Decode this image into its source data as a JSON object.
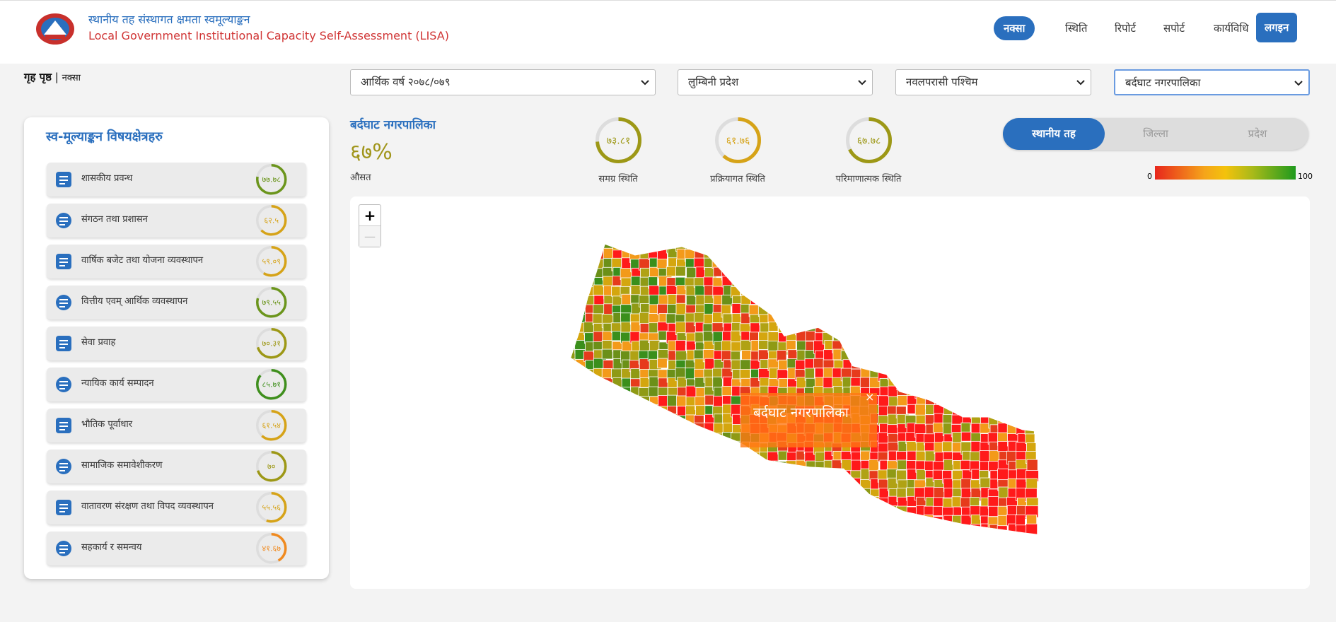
{
  "header": {
    "title_np": "स्थानीय तह संस्थागत क्षमता स्वमूल्याङ्कन",
    "title_en": "Local Government Institutional Capacity Self-Assessment (LISA)"
  },
  "nav": [
    "नक्सा",
    "स्थिति",
    "रिपोर्ट",
    "सपोर्ट",
    "कार्यविधि"
  ],
  "login": "लगइन",
  "breadcrumb": {
    "home": "गृह पृष्ठ",
    "current": "नक्सा"
  },
  "filters": [
    "आर्थिक वर्ष २०७८/०७९",
    "लुम्बिनी प्रदेश",
    "नवलपरासी पश्चिम",
    "बर्दघाट नगरपालिका"
  ],
  "sidebar": {
    "title": "स्व-मूल्याङ्कन विषयक्षेत्रहरु",
    "items": [
      {
        "label": "शासकीय प्रवन्ध",
        "score": "७७.७८"
      },
      {
        "label": "संगठन तथा प्रशासन",
        "score": "६२.५"
      },
      {
        "label": "वार्षिक बजेट तथा योजना व्यवस्थापन",
        "score": "५९.०९"
      },
      {
        "label": "वित्तीय एवम् आर्थिक व्यवस्थापन",
        "score": "७९.५५"
      },
      {
        "label": "सेवा प्रवाह",
        "score": "७०.३१"
      },
      {
        "label": "न्यायिक कार्य सम्पादन",
        "score": "८५.७१"
      },
      {
        "label": "भौतिक पूर्वाधार",
        "score": "६१.५४"
      },
      {
        "label": "सामाजिक समावेशीकरण",
        "score": "७०"
      },
      {
        "label": "वातावरण संरक्षण तथा विपद व्यवस्थापन",
        "score": "५५.५६"
      },
      {
        "label": "सहकार्य र समन्वय",
        "score": "४१.६७"
      }
    ]
  },
  "summary": {
    "name": "बर्दघाट नगरपालिका",
    "average": "६७%",
    "average_label": "औसत",
    "indicators": [
      {
        "label": "समग्र स्थिति",
        "score": "७३.८१"
      },
      {
        "label": "प्रक्रियागत स्थिति",
        "score": "६१.७६"
      },
      {
        "label": "परिमाणात्मक स्थिति",
        "score": "६७.७८"
      }
    ]
  },
  "levels": [
    "स्थानीय तह",
    "जिल्ला",
    "प्रदेश"
  ],
  "legend": {
    "min": 0,
    "max": 100
  },
  "map": {
    "zoom_in": "+",
    "zoom_out": "—",
    "tooltip": "बर्दघाट नगरपालिका",
    "close": "×"
  }
}
